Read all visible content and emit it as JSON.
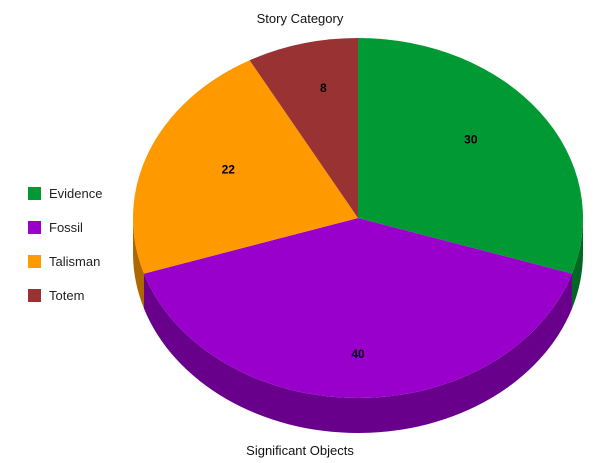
{
  "chart_data": {
    "type": "pie",
    "title": "Story Category",
    "xlabel": "Significant Objects",
    "slices": [
      {
        "label": "Evidence",
        "value": 30,
        "color": "#009933"
      },
      {
        "label": "Fossil",
        "value": 40,
        "color": "#9900cc"
      },
      {
        "label": "Talisman",
        "value": 22,
        "color": "#ff9900"
      },
      {
        "label": "Totem",
        "value": 8,
        "color": "#993333"
      }
    ],
    "legend_position": "left",
    "style": "3d"
  }
}
